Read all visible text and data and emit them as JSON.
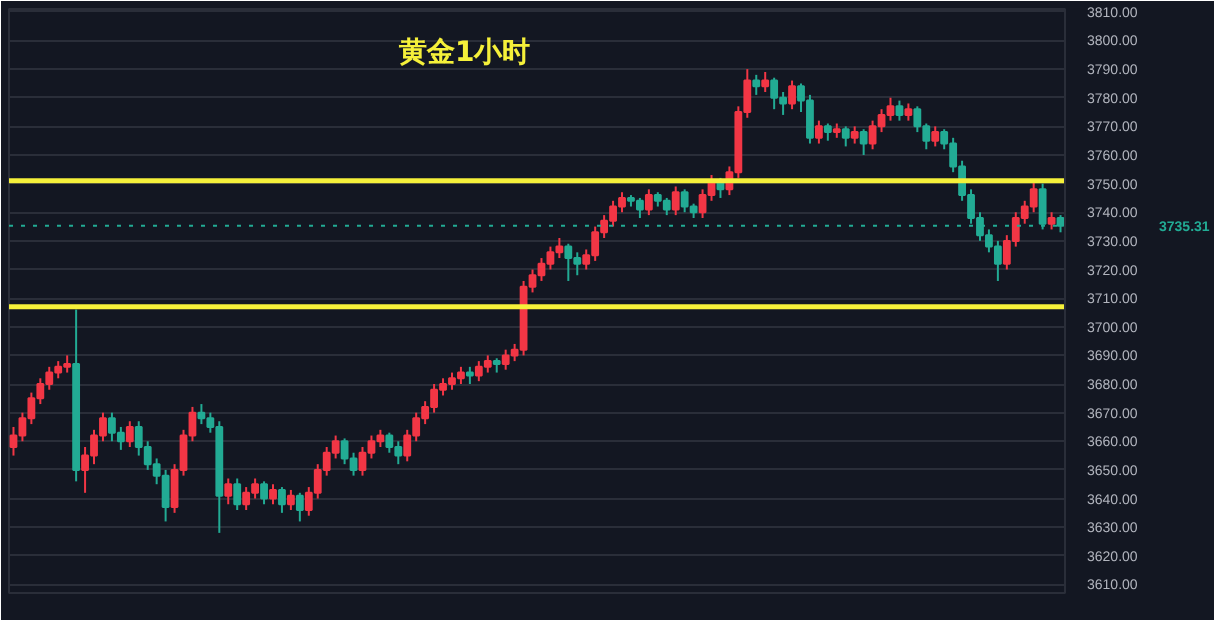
{
  "chart_data": {
    "type": "candlestick",
    "title": "黄金1小时",
    "categories": [
      null,
      null,
      null,
      null,
      null,
      null,
      null,
      null,
      null,
      null,
      null,
      null,
      null,
      null,
      null,
      null,
      null,
      null,
      null,
      null,
      null,
      null,
      null,
      null,
      null,
      null,
      null,
      null,
      null,
      null,
      null,
      null,
      null,
      null,
      null,
      null,
      null,
      null,
      null,
      null,
      null,
      null,
      null,
      null,
      null,
      null,
      null,
      null,
      null,
      null,
      null,
      null,
      null,
      null,
      null,
      null,
      null,
      null,
      null,
      null,
      null,
      null,
      null,
      null,
      null,
      null,
      null,
      null,
      null,
      null,
      null,
      null,
      null,
      null,
      null,
      null,
      null,
      null,
      null,
      null,
      null,
      null,
      null,
      null,
      null,
      null,
      null,
      null,
      null,
      null,
      null,
      null,
      null,
      null,
      null,
      null,
      null,
      null,
      null,
      null,
      null,
      null,
      null,
      null,
      null,
      null,
      null,
      null,
      null,
      null,
      null,
      null,
      null,
      null,
      null,
      null,
      null,
      null
    ],
    "ohlc": [
      [
        3658,
        3665,
        3655,
        3662
      ],
      [
        3662,
        3670,
        3660,
        3668
      ],
      [
        3668,
        3677,
        3666,
        3675
      ],
      [
        3675,
        3682,
        3673,
        3680
      ],
      [
        3680,
        3686,
        3678,
        3684
      ],
      [
        3684,
        3688,
        3682,
        3686
      ],
      [
        3686,
        3690,
        3684,
        3687
      ],
      [
        3687,
        3706,
        3646,
        3650
      ],
      [
        3650,
        3658,
        3642,
        3655
      ],
      [
        3655,
        3664,
        3652,
        3662
      ],
      [
        3662,
        3670,
        3660,
        3668
      ],
      [
        3668,
        3670,
        3660,
        3663
      ],
      [
        3663,
        3665,
        3657,
        3660
      ],
      [
        3660,
        3667,
        3658,
        3665
      ],
      [
        3665,
        3667,
        3655,
        3658
      ],
      [
        3658,
        3660,
        3650,
        3652
      ],
      [
        3652,
        3654,
        3645,
        3648
      ],
      [
        3648,
        3650,
        3632,
        3637
      ],
      [
        3637,
        3652,
        3635,
        3650
      ],
      [
        3650,
        3664,
        3648,
        3662
      ],
      [
        3662,
        3672,
        3660,
        3670
      ],
      [
        3670,
        3673,
        3666,
        3668
      ],
      [
        3668,
        3670,
        3663,
        3665
      ],
      [
        3665,
        3667,
        3628,
        3641
      ],
      [
        3641,
        3647,
        3638,
        3645
      ],
      [
        3645,
        3647,
        3636,
        3638
      ],
      [
        3638,
        3644,
        3636,
        3642
      ],
      [
        3642,
        3647,
        3640,
        3645
      ],
      [
        3645,
        3646,
        3638,
        3640
      ],
      [
        3640,
        3645,
        3638,
        3643
      ],
      [
        3643,
        3644,
        3635,
        3638
      ],
      [
        3638,
        3643,
        3636,
        3641
      ],
      [
        3641,
        3642,
        3632,
        3636
      ],
      [
        3636,
        3644,
        3634,
        3642
      ],
      [
        3642,
        3652,
        3640,
        3650
      ],
      [
        3650,
        3658,
        3648,
        3656
      ],
      [
        3656,
        3662,
        3654,
        3660
      ],
      [
        3660,
        3661,
        3652,
        3654
      ],
      [
        3654,
        3656,
        3648,
        3650
      ],
      [
        3650,
        3658,
        3648,
        3656
      ],
      [
        3656,
        3662,
        3654,
        3660
      ],
      [
        3660,
        3664,
        3658,
        3662
      ],
      [
        3662,
        3663,
        3656,
        3658
      ],
      [
        3658,
        3660,
        3652,
        3655
      ],
      [
        3655,
        3664,
        3653,
        3662
      ],
      [
        3662,
        3670,
        3660,
        3668
      ],
      [
        3668,
        3674,
        3666,
        3672
      ],
      [
        3672,
        3680,
        3670,
        3678
      ],
      [
        3678,
        3682,
        3676,
        3680
      ],
      [
        3680,
        3684,
        3678,
        3682
      ],
      [
        3682,
        3686,
        3680,
        3684
      ],
      [
        3684,
        3686,
        3680,
        3683
      ],
      [
        3683,
        3688,
        3681,
        3686
      ],
      [
        3686,
        3690,
        3684,
        3688
      ],
      [
        3688,
        3689,
        3684,
        3687
      ],
      [
        3687,
        3692,
        3685,
        3690
      ],
      [
        3690,
        3694,
        3688,
        3692
      ],
      [
        3692,
        3716,
        3690,
        3714
      ],
      [
        3714,
        3720,
        3712,
        3718
      ],
      [
        3718,
        3724,
        3716,
        3722
      ],
      [
        3722,
        3728,
        3720,
        3726
      ],
      [
        3726,
        3731,
        3724,
        3728
      ],
      [
        3728,
        3729,
        3716,
        3724
      ],
      [
        3724,
        3726,
        3718,
        3722
      ],
      [
        3722,
        3727,
        3720,
        3725
      ],
      [
        3725,
        3735,
        3723,
        3733
      ],
      [
        3733,
        3739,
        3731,
        3737
      ],
      [
        3737,
        3744,
        3735,
        3742
      ],
      [
        3742,
        3747,
        3740,
        3745
      ],
      [
        3745,
        3746,
        3742,
        3744
      ],
      [
        3744,
        3745,
        3738,
        3741
      ],
      [
        3741,
        3748,
        3739,
        3746
      ],
      [
        3746,
        3747,
        3742,
        3744
      ],
      [
        3744,
        3745,
        3739,
        3741
      ],
      [
        3741,
        3749,
        3739,
        3747
      ],
      [
        3747,
        3748,
        3740,
        3742
      ],
      [
        3742,
        3743,
        3738,
        3740
      ],
      [
        3740,
        3748,
        3738,
        3746
      ],
      [
        3746,
        3753,
        3744,
        3751
      ],
      [
        3751,
        3752,
        3745,
        3748
      ],
      [
        3748,
        3756,
        3746,
        3754
      ],
      [
        3754,
        3777,
        3752,
        3775
      ],
      [
        3775,
        3790,
        3773,
        3786
      ],
      [
        3786,
        3788,
        3781,
        3784
      ],
      [
        3784,
        3789,
        3782,
        3786
      ],
      [
        3786,
        3787,
        3776,
        3780
      ],
      [
        3780,
        3782,
        3774,
        3778
      ],
      [
        3778,
        3786,
        3776,
        3784
      ],
      [
        3784,
        3785,
        3775,
        3779
      ],
      [
        3779,
        3781,
        3764,
        3766
      ],
      [
        3766,
        3772,
        3764,
        3770
      ],
      [
        3770,
        3771,
        3765,
        3768
      ],
      [
        3768,
        3771,
        3766,
        3769
      ],
      [
        3769,
        3770,
        3763,
        3766
      ],
      [
        3766,
        3770,
        3764,
        3768
      ],
      [
        3768,
        3769,
        3760,
        3764
      ],
      [
        3764,
        3772,
        3762,
        3770
      ],
      [
        3770,
        3776,
        3768,
        3774
      ],
      [
        3774,
        3780,
        3772,
        3777
      ],
      [
        3777,
        3779,
        3772,
        3774
      ],
      [
        3774,
        3778,
        3772,
        3776
      ],
      [
        3776,
        3777,
        3768,
        3770
      ],
      [
        3770,
        3771,
        3762,
        3765
      ],
      [
        3765,
        3770,
        3763,
        3768
      ],
      [
        3768,
        3769,
        3762,
        3764
      ],
      [
        3764,
        3766,
        3754,
        3756
      ],
      [
        3756,
        3758,
        3744,
        3746
      ],
      [
        3746,
        3748,
        3736,
        3738
      ],
      [
        3738,
        3740,
        3730,
        3732
      ],
      [
        3732,
        3734,
        3726,
        3728
      ],
      [
        3728,
        3730,
        3716,
        3722
      ],
      [
        3722,
        3732,
        3720,
        3730
      ],
      [
        3730,
        3740,
        3728,
        3738
      ],
      [
        3738,
        3744,
        3736,
        3742
      ],
      [
        3742,
        3751,
        3740,
        3748
      ],
      [
        3748,
        3750,
        3734,
        3736
      ],
      [
        3736,
        3740,
        3734,
        3738
      ],
      [
        3738,
        3739,
        3733,
        3735.31
      ]
    ],
    "colors": [
      "#f23645",
      "#f23645",
      "#f23645",
      "#f23645",
      "#f23645",
      "#f23645",
      "#f23645",
      "#22ab94",
      "#f23645",
      "#f23645",
      "#f23645",
      "#22ab94",
      "#22ab94",
      "#f23645",
      "#22ab94",
      "#22ab94",
      "#22ab94",
      "#22ab94",
      "#f23645",
      "#f23645",
      "#f23645",
      "#22ab94",
      "#22ab94",
      "#22ab94",
      "#f23645",
      "#22ab94",
      "#f23645",
      "#f23645",
      "#22ab94",
      "#f23645",
      "#22ab94",
      "#f23645",
      "#22ab94",
      "#f23645",
      "#f23645",
      "#f23645",
      "#f23645",
      "#22ab94",
      "#22ab94",
      "#f23645",
      "#f23645",
      "#f23645",
      "#22ab94",
      "#22ab94",
      "#f23645",
      "#f23645",
      "#f23645",
      "#f23645",
      "#f23645",
      "#f23645",
      "#f23645",
      "#22ab94",
      "#f23645",
      "#f23645",
      "#22ab94",
      "#f23645",
      "#f23645",
      "#f23645",
      "#f23645",
      "#f23645",
      "#f23645",
      "#f23645",
      "#22ab94",
      "#22ab94",
      "#f23645",
      "#f23645",
      "#f23645",
      "#f23645",
      "#f23645",
      "#22ab94",
      "#22ab94",
      "#f23645",
      "#22ab94",
      "#22ab94",
      "#f23645",
      "#22ab94",
      "#22ab94",
      "#f23645",
      "#f23645",
      "#22ab94",
      "#f23645",
      "#f23645",
      "#f23645",
      "#22ab94",
      "#f23645",
      "#22ab94",
      "#22ab94",
      "#f23645",
      "#22ab94",
      "#22ab94",
      "#f23645",
      "#22ab94",
      "#f23645",
      "#22ab94",
      "#f23645",
      "#22ab94",
      "#f23645",
      "#f23645",
      "#f23645",
      "#22ab94",
      "#f23645",
      "#22ab94",
      "#22ab94",
      "#f23645",
      "#22ab94",
      "#22ab94",
      "#22ab94",
      "#22ab94",
      "#22ab94",
      "#22ab94",
      "#22ab94",
      "#f23645",
      "#f23645",
      "#f23645",
      "#f23645",
      "#22ab94",
      "#f23645",
      "#22ab94"
    ],
    "ref_lines": [
      {
        "axis": "y",
        "value": 3707,
        "color": "#f5f03a",
        "line_style": "solid"
      },
      {
        "axis": "y",
        "value": 3751,
        "color": "#f5f03a",
        "line_style": "solid"
      },
      {
        "axis": "y",
        "value": 3735.31,
        "label": "3735.31",
        "color": "#22ab94",
        "line_style": "dotted"
      }
    ],
    "ylim": [
      3607,
      3811
    ],
    "yticks": [
      {
        "value": 3610,
        "label": "3610.00"
      },
      {
        "value": 3620,
        "label": "3620.00"
      },
      {
        "value": 3630,
        "label": "3630.00"
      },
      {
        "value": 3640,
        "label": "3640.00"
      },
      {
        "value": 3650,
        "label": "3650.00"
      },
      {
        "value": 3660,
        "label": "3660.00"
      },
      {
        "value": 3670,
        "label": "3670.00"
      },
      {
        "value": 3680,
        "label": "3680.00"
      },
      {
        "value": 3690,
        "label": "3690.00"
      },
      {
        "value": 3700,
        "label": "3700.00"
      },
      {
        "value": 3710,
        "label": "3710.00"
      },
      {
        "value": 3720,
        "label": "3720.00"
      },
      {
        "value": 3730,
        "label": "3730.00"
      },
      {
        "value": 3740,
        "label": "3740.00"
      },
      {
        "value": 3750,
        "label": "3750.00"
      },
      {
        "value": 3760,
        "label": "3760.00"
      },
      {
        "value": 3770,
        "label": "3770.00"
      },
      {
        "value": 3780,
        "label": "3780.00"
      },
      {
        "value": 3790,
        "label": "3790.00"
      },
      {
        "value": 3800,
        "label": "3800.00"
      },
      {
        "value": 3810,
        "label": "3810.00"
      }
    ],
    "tick_labels": "y",
    "grid": "y"
  }
}
